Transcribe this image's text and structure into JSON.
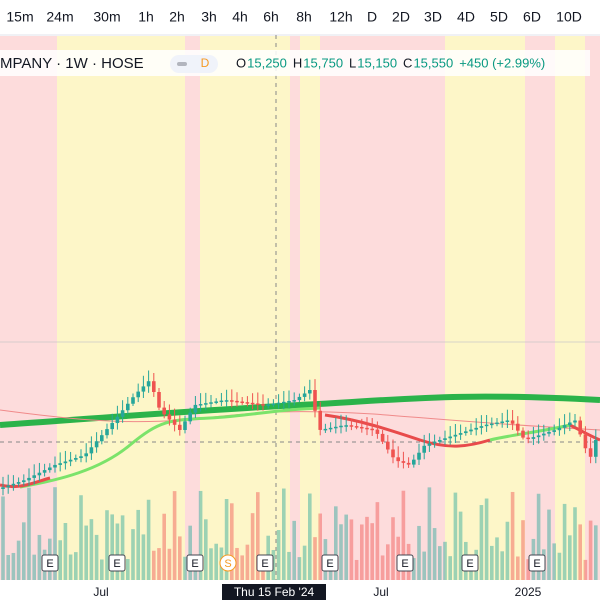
{
  "toolbar": {
    "intervals": [
      "15m",
      "24m",
      "30m",
      "1h",
      "2h",
      "3h",
      "4h",
      "6h",
      "8h",
      "12h",
      "D",
      "2D",
      "3D",
      "4D",
      "5D",
      "6D",
      "10D"
    ]
  },
  "legend": {
    "symbol": "MPANY · 1W · HOSE",
    "badge": "D",
    "open_label": "O",
    "open": "15,250",
    "high_label": "H",
    "high": "15,750",
    "low_label": "L",
    "low": "15,150",
    "close_label": "C",
    "close": "15,550",
    "change": "+450 (+2.99%)"
  },
  "x_axis": {
    "labels": [
      "Jul",
      "Jul",
      "2025"
    ],
    "crosshair": "Thu 15 Feb '24"
  },
  "events": [
    "E",
    "E",
    "E",
    "S",
    "E",
    "E",
    "E",
    "E",
    "E"
  ]
}
